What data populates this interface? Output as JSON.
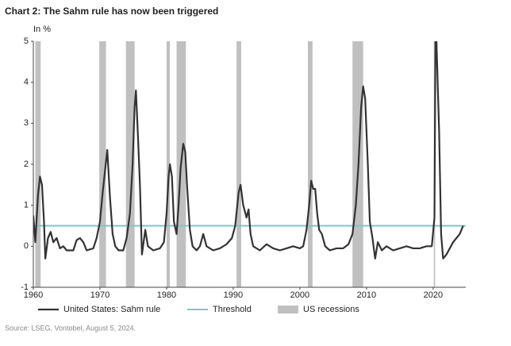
{
  "chart_data": {
    "type": "line",
    "title": "Chart 2: The Sahm rule has now been triggered",
    "y_label": "In %",
    "source": "Source: LSEG, Vontobel, August 5, 2024.",
    "xlim": [
      1960,
      2024.9
    ],
    "ylim": [
      -1,
      5
    ],
    "xticks": [
      1960,
      1970,
      1980,
      1990,
      2000,
      2010,
      2020
    ],
    "yticks": [
      -1,
      0,
      1,
      2,
      3,
      4,
      5
    ],
    "series": [
      {
        "name": "United States: Sahm rule",
        "color": "#333333",
        "x": [
          1960,
          1960.3,
          1960.7,
          1961.0,
          1961.3,
          1961.6,
          1961.8,
          1962.2,
          1962.6,
          1963.0,
          1963.5,
          1964.0,
          1964.5,
          1965.0,
          1966.0,
          1966.5,
          1967.0,
          1967.5,
          1968.0,
          1969.0,
          1969.5,
          1970.0,
          1970.4,
          1970.8,
          1971.1,
          1971.5,
          1971.9,
          1972.3,
          1972.8,
          1973.5,
          1974.0,
          1974.5,
          1974.9,
          1975.2,
          1975.4,
          1975.7,
          1976.0,
          1976.3,
          1976.8,
          1977.2,
          1978.0,
          1979.0,
          1979.6,
          1980.0,
          1980.3,
          1980.5,
          1980.8,
          1981.1,
          1981.5,
          1981.8,
          1982.1,
          1982.5,
          1982.8,
          1983.1,
          1983.5,
          1983.9,
          1984.5,
          1985.0,
          1985.5,
          1986.0,
          1987.0,
          1988.0,
          1989.0,
          1989.8,
          1990.3,
          1990.8,
          1991.1,
          1991.5,
          1992.0,
          1992.3,
          1992.6,
          1993.0,
          1994.0,
          1995.0,
          1996.0,
          1997.0,
          1998.0,
          1999.0,
          2000.0,
          2000.5,
          2001.0,
          2001.4,
          2001.7,
          2002.0,
          2002.3,
          2002.6,
          2002.9,
          2003.3,
          2003.8,
          2004.5,
          2005.5,
          2006.5,
          2007.3,
          2007.9,
          2008.4,
          2008.8,
          2009.2,
          2009.5,
          2009.8,
          2010.2,
          2010.5,
          2010.9,
          2011.3,
          2011.7,
          2012.3,
          2013.0,
          2014.0,
          2015.0,
          2016.0,
          2017.0,
          2018.0,
          2019.0,
          2019.8,
          2020.2,
          2020.35,
          2020.5,
          2020.9,
          2021.2,
          2021.5,
          2022.0,
          2022.5,
          2023.0,
          2023.5,
          2024.0,
          2024.5
        ],
        "values": [
          0.75,
          0.1,
          1.25,
          1.7,
          1.5,
          0.6,
          -0.3,
          0.2,
          0.35,
          0.1,
          0.2,
          -0.05,
          0.0,
          -0.1,
          -0.1,
          0.15,
          0.2,
          0.1,
          -0.1,
          -0.05,
          0.2,
          0.6,
          1.3,
          1.9,
          2.35,
          1.2,
          0.3,
          0.0,
          -0.1,
          -0.1,
          0.2,
          0.8,
          2.0,
          3.4,
          3.8,
          2.7,
          1.5,
          -0.2,
          0.4,
          0.0,
          -0.1,
          -0.05,
          0.1,
          0.8,
          1.7,
          2.0,
          1.7,
          0.6,
          0.3,
          1.0,
          1.9,
          2.5,
          2.3,
          1.4,
          0.4,
          0.0,
          -0.1,
          0.0,
          0.3,
          0.0,
          -0.1,
          -0.05,
          0.05,
          0.2,
          0.5,
          1.3,
          1.5,
          1.0,
          0.7,
          0.9,
          0.3,
          0.0,
          -0.1,
          0.05,
          -0.05,
          -0.1,
          -0.05,
          0.0,
          -0.05,
          0.0,
          0.4,
          1.0,
          1.6,
          1.4,
          1.4,
          0.8,
          0.4,
          0.3,
          0.0,
          -0.1,
          -0.05,
          -0.05,
          0.05,
          0.3,
          1.0,
          2.0,
          3.4,
          3.9,
          3.6,
          2.0,
          0.6,
          0.2,
          -0.3,
          0.1,
          -0.1,
          0.0,
          -0.1,
          -0.05,
          0.0,
          -0.05,
          -0.05,
          0.0,
          0.0,
          0.7,
          5.0,
          5.0,
          2.8,
          0.3,
          -0.3,
          -0.2,
          -0.05,
          0.1,
          0.2,
          0.3,
          0.5
        ]
      }
    ],
    "threshold": {
      "name": "Threshold",
      "color": "#7cc7c5",
      "value": 0.5
    },
    "recessions": {
      "name": "US recessions",
      "color": "#c0c0c0",
      "periods": [
        [
          1960.3,
          1961.1
        ],
        [
          1969.9,
          1970.9
        ],
        [
          1973.9,
          1975.2
        ],
        [
          1980.0,
          1980.5
        ],
        [
          1981.5,
          1982.9
        ],
        [
          1990.5,
          1991.2
        ],
        [
          2001.2,
          2001.9
        ],
        [
          2007.9,
          2009.5
        ],
        [
          2020.1,
          2020.3
        ]
      ]
    }
  }
}
